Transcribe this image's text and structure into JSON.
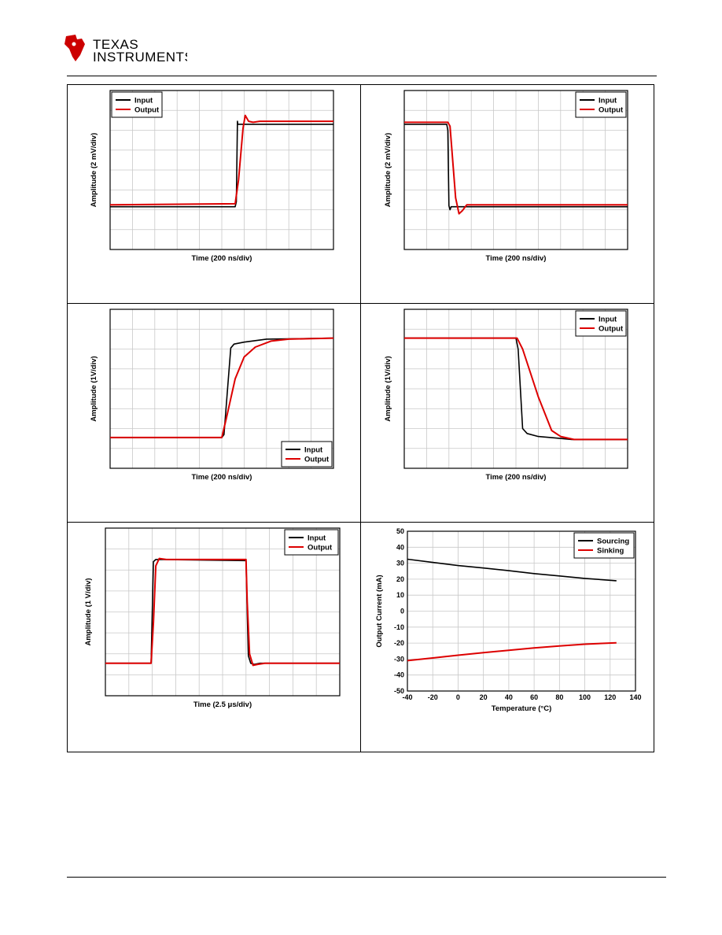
{
  "header": {
    "brand_line1": "Texas",
    "brand_line2": "Instruments",
    "colors": {
      "logo": "#cc0000"
    }
  },
  "colors": {
    "input": "#000000",
    "output": "#dd0000",
    "sourcing": "#000000",
    "sinking": "#dd0000",
    "grid": "#c8c8c8"
  },
  "chart_data": [
    {
      "id": "c1",
      "type": "line",
      "xlabel": "Time (200 ns/div)",
      "ylabel": "Amplitude (2 mV/div)",
      "xdiv": 10,
      "ydiv": 8,
      "xlim": [
        0,
        10
      ],
      "ylim": [
        0,
        8
      ],
      "legend": "top-left",
      "series": [
        {
          "name": "Input",
          "color": "#000000",
          "x": [
            0,
            5.6,
            5.65,
            5.7,
            5.72,
            5.8,
            6.0,
            10
          ],
          "y": [
            2.15,
            2.15,
            2.4,
            6.45,
            6.3,
            6.3,
            6.3,
            6.3
          ]
        },
        {
          "name": "Output",
          "color": "#dd0000",
          "x": [
            0,
            5.6,
            5.75,
            5.95,
            6.05,
            6.2,
            6.4,
            6.7,
            10
          ],
          "y": [
            2.25,
            2.3,
            3.5,
            6.1,
            6.75,
            6.45,
            6.4,
            6.45,
            6.45
          ]
        }
      ]
    },
    {
      "id": "c2",
      "type": "line",
      "xlabel": "Time (200 ns/div)",
      "ylabel": "Amplitude (2 mV/div)",
      "xdiv": 10,
      "ydiv": 8,
      "xlim": [
        0,
        10
      ],
      "ylim": [
        0,
        8
      ],
      "legend": "top-right",
      "series": [
        {
          "name": "Input",
          "color": "#000000",
          "x": [
            0,
            1.9,
            1.95,
            2.0,
            2.05,
            2.1,
            2.2,
            10
          ],
          "y": [
            6.3,
            6.3,
            6.0,
            2.2,
            2.0,
            2.15,
            2.15,
            2.15
          ]
        },
        {
          "name": "Output",
          "color": "#dd0000",
          "x": [
            0,
            1.95,
            2.05,
            2.3,
            2.45,
            2.6,
            2.8,
            3.2,
            10
          ],
          "y": [
            6.4,
            6.4,
            6.2,
            2.6,
            1.8,
            1.95,
            2.25,
            2.25,
            2.25
          ]
        }
      ]
    },
    {
      "id": "c3",
      "type": "line",
      "xlabel": "Time (200 ns/div)",
      "ylabel": "Amplitude (1V/div)",
      "xdiv": 10,
      "ydiv": 8,
      "xlim": [
        0,
        10
      ],
      "ylim": [
        0,
        8
      ],
      "legend": "bottom-right",
      "series": [
        {
          "name": "Input",
          "color": "#000000",
          "x": [
            0,
            5.0,
            5.1,
            5.4,
            5.55,
            6.0,
            7.0,
            10
          ],
          "y": [
            1.55,
            1.55,
            1.7,
            6.05,
            6.25,
            6.35,
            6.5,
            6.55
          ]
        },
        {
          "name": "Output",
          "color": "#dd0000",
          "x": [
            0,
            5.0,
            5.2,
            5.6,
            6.0,
            6.5,
            7.2,
            8.0,
            10
          ],
          "y": [
            1.55,
            1.55,
            2.5,
            4.5,
            5.6,
            6.1,
            6.4,
            6.5,
            6.55
          ]
        }
      ]
    },
    {
      "id": "c4",
      "type": "line",
      "xlabel": "Time (200 ns/div)",
      "ylabel": "Amplitude (1V/div)",
      "xdiv": 10,
      "ydiv": 8,
      "xlim": [
        0,
        10
      ],
      "ylim": [
        0,
        8
      ],
      "legend": "top-right",
      "series": [
        {
          "name": "Input",
          "color": "#000000",
          "x": [
            0,
            5.0,
            5.1,
            5.3,
            5.5,
            6.0,
            7.0,
            7.5,
            10
          ],
          "y": [
            6.55,
            6.55,
            6.0,
            2.0,
            1.75,
            1.6,
            1.5,
            1.45,
            1.45
          ]
        },
        {
          "name": "Output",
          "color": "#dd0000",
          "x": [
            0,
            5.05,
            5.3,
            6.0,
            6.6,
            7.0,
            7.6,
            10
          ],
          "y": [
            6.55,
            6.55,
            6.0,
            3.6,
            1.9,
            1.6,
            1.45,
            1.45
          ]
        }
      ]
    },
    {
      "id": "c5",
      "type": "line",
      "xlabel": "Time (2.5 μs/div)",
      "ylabel": "Amplitude (1 V/div)",
      "xdiv": 10,
      "ydiv": 8,
      "xlim": [
        0,
        10
      ],
      "ylim": [
        0,
        8
      ],
      "legend": "top-right",
      "series": [
        {
          "name": "Input",
          "color": "#000000",
          "x": [
            0,
            1.95,
            2.0,
            2.05,
            2.15,
            2.4,
            6.0,
            6.05,
            6.1,
            6.2,
            6.35,
            6.6,
            10
          ],
          "y": [
            1.55,
            1.55,
            4.0,
            6.4,
            6.5,
            6.5,
            6.45,
            4.0,
            1.9,
            1.55,
            1.5,
            1.55,
            1.55
          ]
        },
        {
          "name": "Output",
          "color": "#dd0000",
          "x": [
            0,
            1.95,
            2.05,
            2.15,
            2.3,
            2.6,
            6.0,
            6.05,
            6.15,
            6.3,
            6.5,
            6.8,
            10
          ],
          "y": [
            1.55,
            1.55,
            3.5,
            6.2,
            6.55,
            6.5,
            6.5,
            4.5,
            2.0,
            1.45,
            1.5,
            1.55,
            1.55
          ]
        }
      ]
    },
    {
      "id": "c6",
      "type": "line",
      "xlabel": "Temperature (°C)",
      "ylabel": "Output Current (mA)",
      "xlim": [
        -40,
        140
      ],
      "ylim": [
        -50,
        50
      ],
      "xticks": [
        -40,
        -20,
        0,
        20,
        40,
        60,
        80,
        100,
        120,
        140
      ],
      "yticks": [
        -50,
        -40,
        -30,
        -20,
        -10,
        0,
        10,
        20,
        30,
        40,
        50
      ],
      "xtick_labels": [
        "-40",
        "-20",
        "0",
        "20",
        "40",
        "60",
        "80",
        "100",
        "120",
        "140"
      ],
      "ytick_labels": [
        "-50",
        "-40",
        "-30",
        "-20",
        "-10",
        "0",
        "10",
        "20",
        "30",
        "40",
        "50"
      ],
      "legend": "top-right",
      "series": [
        {
          "name": "Sourcing",
          "color": "#000000",
          "x": [
            -40,
            -20,
            0,
            20,
            40,
            60,
            80,
            100,
            125
          ],
          "y": [
            32.5,
            30.5,
            28.5,
            27.0,
            25.3,
            23.5,
            22.0,
            20.5,
            19.0
          ]
        },
        {
          "name": "Sinking",
          "color": "#dd0000",
          "x": [
            -40,
            -20,
            0,
            20,
            40,
            60,
            80,
            100,
            125
          ],
          "y": [
            -31.0,
            -29.3,
            -27.6,
            -26.0,
            -24.5,
            -23.0,
            -21.8,
            -20.7,
            -19.8
          ]
        }
      ]
    }
  ]
}
